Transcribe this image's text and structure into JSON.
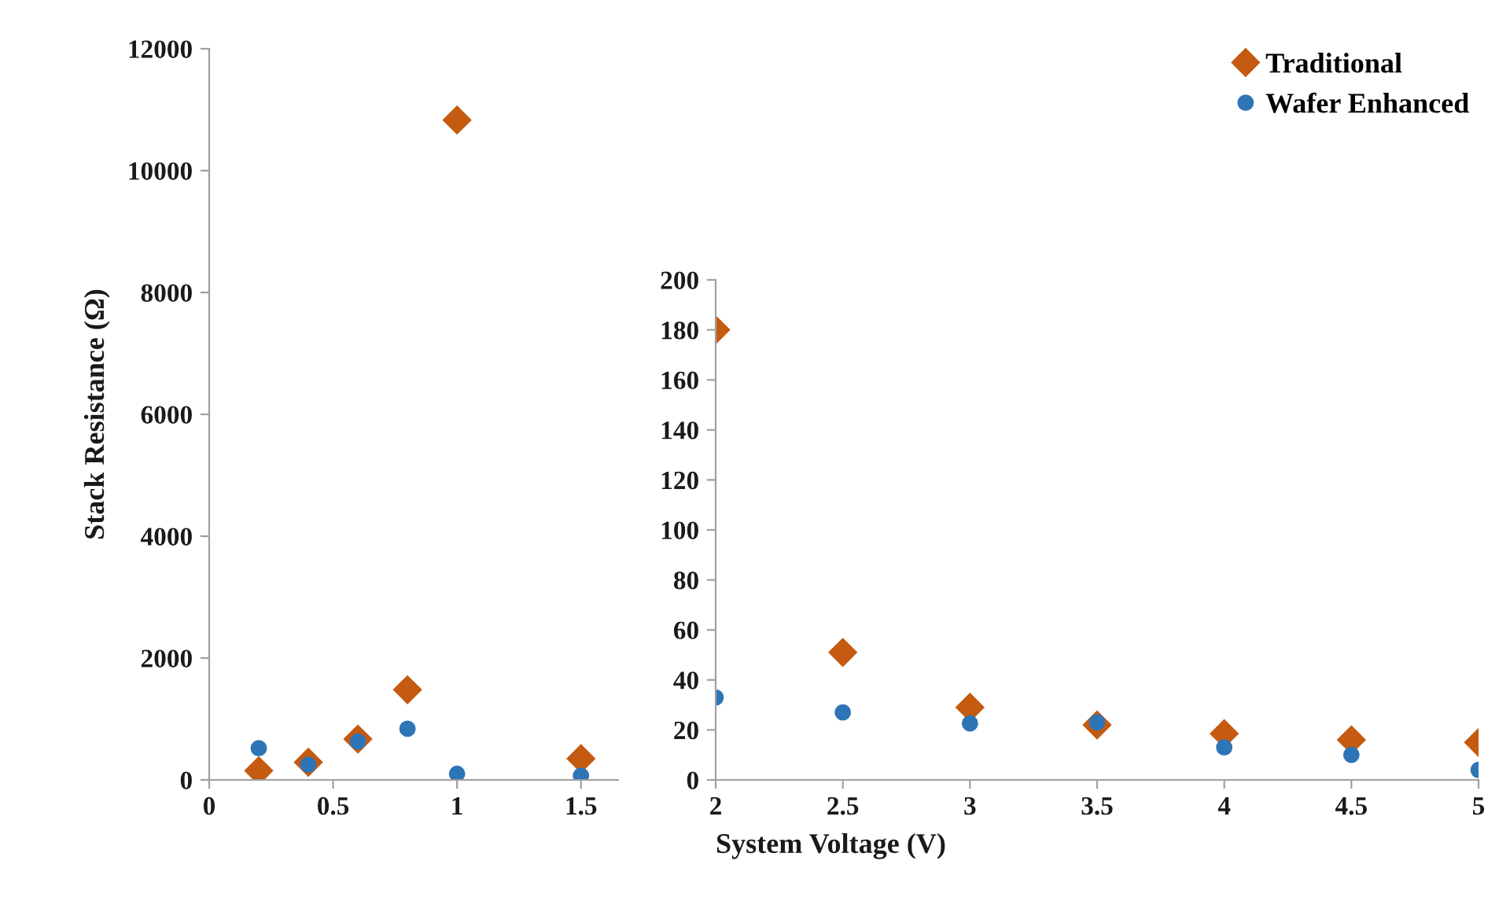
{
  "chart_data": [
    {
      "type": "scatter",
      "ylabel": "Stack Resistance (Ω)",
      "xlim": [
        0,
        1.65
      ],
      "xticks": [
        0,
        0.5,
        1,
        1.5
      ],
      "ylim": [
        0,
        12000
      ],
      "yticks": [
        0,
        2000,
        4000,
        6000,
        8000,
        10000,
        12000
      ],
      "grid": false,
      "legend": "top right",
      "series": [
        {
          "name": "Traditional",
          "color": "#c55a11",
          "marker": "diamond",
          "x": [
            0.2,
            0.4,
            0.6,
            0.8,
            1.0,
            1.5
          ],
          "values": [
            150,
            290,
            670,
            1480,
            10830,
            350
          ]
        },
        {
          "name": "Wafer Enhanced",
          "color": "#2e75b6",
          "marker": "circle",
          "x": [
            0.2,
            0.4,
            0.6,
            0.8,
            1.0,
            1.5
          ],
          "values": [
            520,
            250,
            630,
            840,
            100,
            70
          ]
        }
      ]
    },
    {
      "type": "scatter",
      "xlabel": "System Voltage (V)",
      "xlim": [
        2,
        5
      ],
      "xticks": [
        2,
        2.5,
        3,
        3.5,
        4,
        4.5,
        5
      ],
      "ylim": [
        0,
        200
      ],
      "yticks": [
        0,
        20,
        40,
        60,
        80,
        100,
        120,
        140,
        160,
        180,
        200
      ],
      "grid": false,
      "series": [
        {
          "color": "#c55a11",
          "marker": "diamond",
          "x": [
            2,
            2.5,
            3,
            3.5,
            4,
            4.5,
            5
          ],
          "values": [
            180,
            51,
            29,
            22,
            18.5,
            16,
            15
          ]
        },
        {
          "color": "#2e75b6",
          "marker": "circle",
          "x": [
            2,
            2.5,
            3,
            3.5,
            4,
            4.5,
            5
          ],
          "values": [
            33,
            27,
            22.6,
            23,
            13,
            10,
            4
          ]
        }
      ]
    }
  ]
}
